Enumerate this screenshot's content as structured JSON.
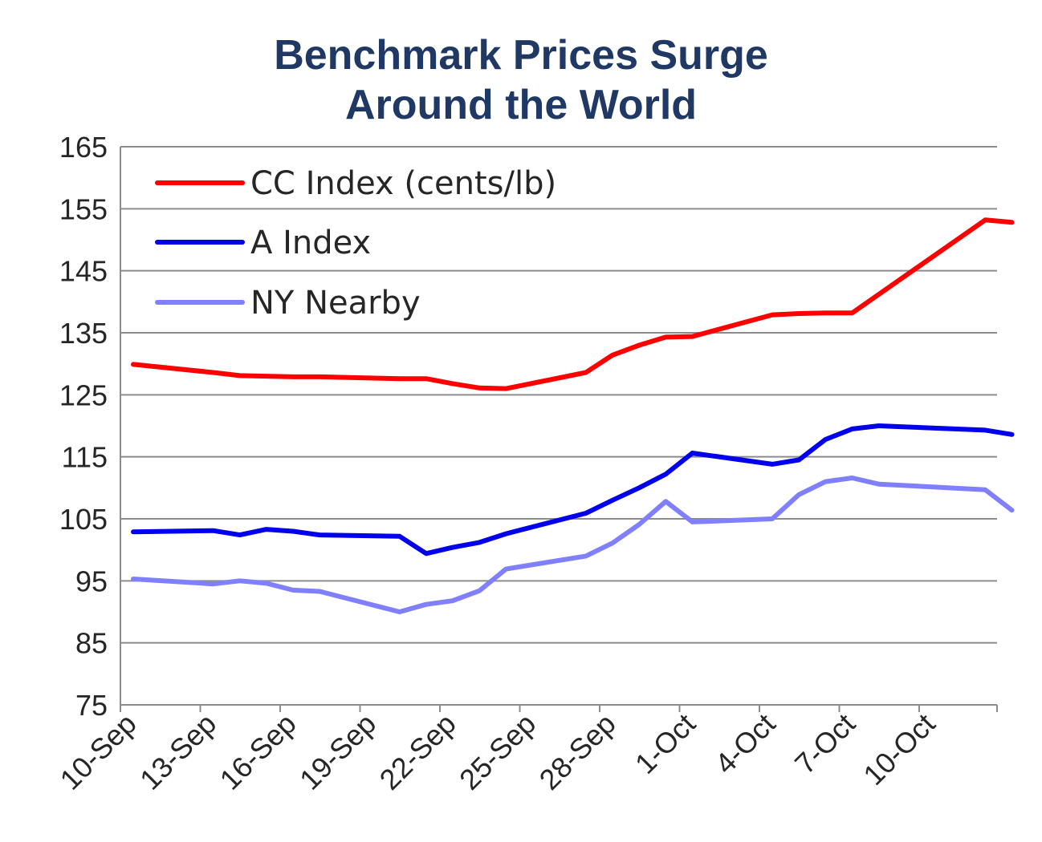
{
  "chart_data": {
    "type": "line",
    "title_line1": "Benchmark Prices Surge",
    "title_line2": "Around the World",
    "xlabel": "",
    "ylabel": "",
    "ylim": [
      75,
      165
    ],
    "yticks": [
      75,
      85,
      95,
      105,
      115,
      125,
      135,
      145,
      155,
      165
    ],
    "x_domain": [
      "2010-09-10",
      "2010-10-13"
    ],
    "xticks": [
      {
        "date": "2010-09-10",
        "label": "10-Sep"
      },
      {
        "date": "2010-09-13",
        "label": "13-Sep"
      },
      {
        "date": "2010-09-16",
        "label": "16-Sep"
      },
      {
        "date": "2010-09-19",
        "label": "19-Sep"
      },
      {
        "date": "2010-09-22",
        "label": "22-Sep"
      },
      {
        "date": "2010-09-25",
        "label": "25-Sep"
      },
      {
        "date": "2010-09-28",
        "label": "28-Sep"
      },
      {
        "date": "2010-10-01",
        "label": "1-Oct"
      },
      {
        "date": "2010-10-04",
        "label": "4-Oct"
      },
      {
        "date": "2010-10-07",
        "label": "7-Oct"
      },
      {
        "date": "2010-10-10",
        "label": "10-Oct"
      }
    ],
    "grid": "horizontal",
    "legend_position": "top-left",
    "series": [
      {
        "name": "CC Index (cents/lb)",
        "color": "#ff0000",
        "points": [
          [
            "2010-09-10",
            129.9
          ],
          [
            "2010-09-13",
            128.6
          ],
          [
            "2010-09-14",
            128.1
          ],
          [
            "2010-09-15",
            128.0
          ],
          [
            "2010-09-16",
            127.9
          ],
          [
            "2010-09-17",
            127.9
          ],
          [
            "2010-09-20",
            127.6
          ],
          [
            "2010-09-21",
            127.6
          ],
          [
            "2010-09-22",
            126.8
          ],
          [
            "2010-09-23",
            126.1
          ],
          [
            "2010-09-24",
            126.0
          ],
          [
            "2010-09-27",
            128.6
          ],
          [
            "2010-09-28",
            131.4
          ],
          [
            "2010-09-29",
            133.0
          ],
          [
            "2010-09-30",
            134.3
          ],
          [
            "2010-10-01",
            134.4
          ],
          [
            "2010-10-04",
            137.9
          ],
          [
            "2010-10-05",
            138.1
          ],
          [
            "2010-10-06",
            138.2
          ],
          [
            "2010-10-07",
            138.2
          ],
          [
            "2010-10-12",
            153.2
          ],
          [
            "2010-10-13",
            152.8
          ]
        ]
      },
      {
        "name": "A Index",
        "color": "#0000ee",
        "points": [
          [
            "2010-09-10",
            102.9
          ],
          [
            "2010-09-13",
            103.1
          ],
          [
            "2010-09-14",
            102.4
          ],
          [
            "2010-09-15",
            103.3
          ],
          [
            "2010-09-16",
            103.0
          ],
          [
            "2010-09-17",
            102.4
          ],
          [
            "2010-09-20",
            102.2
          ],
          [
            "2010-09-21",
            99.4
          ],
          [
            "2010-09-22",
            100.4
          ],
          [
            "2010-09-23",
            101.2
          ],
          [
            "2010-09-24",
            102.6
          ],
          [
            "2010-09-27",
            105.9
          ],
          [
            "2010-09-28",
            108.0
          ],
          [
            "2010-09-29",
            110.0
          ],
          [
            "2010-09-30",
            112.2
          ],
          [
            "2010-10-01",
            115.6
          ],
          [
            "2010-10-04",
            113.8
          ],
          [
            "2010-10-05",
            114.5
          ],
          [
            "2010-10-06",
            117.8
          ],
          [
            "2010-10-07",
            119.5
          ],
          [
            "2010-10-08",
            120.0
          ],
          [
            "2010-10-12",
            119.3
          ],
          [
            "2010-10-13",
            118.6
          ]
        ]
      },
      {
        "name": "NY Nearby",
        "color": "#8080ff",
        "points": [
          [
            "2010-09-10",
            95.3
          ],
          [
            "2010-09-13",
            94.5
          ],
          [
            "2010-09-14",
            95.0
          ],
          [
            "2010-09-15",
            94.6
          ],
          [
            "2010-09-16",
            93.5
          ],
          [
            "2010-09-17",
            93.3
          ],
          [
            "2010-09-20",
            90.0
          ],
          [
            "2010-09-21",
            91.2
          ],
          [
            "2010-09-22",
            91.8
          ],
          [
            "2010-09-23",
            93.4
          ],
          [
            "2010-09-24",
            96.9
          ],
          [
            "2010-09-27",
            99.0
          ],
          [
            "2010-09-28",
            101.1
          ],
          [
            "2010-09-29",
            104.1
          ],
          [
            "2010-09-30",
            107.8
          ],
          [
            "2010-10-01",
            104.5
          ],
          [
            "2010-10-04",
            105.0
          ],
          [
            "2010-10-05",
            108.9
          ],
          [
            "2010-10-06",
            111.0
          ],
          [
            "2010-10-07",
            111.6
          ],
          [
            "2010-10-08",
            110.6
          ],
          [
            "2010-10-12",
            109.7
          ],
          [
            "2010-10-13",
            106.4
          ]
        ]
      }
    ]
  }
}
